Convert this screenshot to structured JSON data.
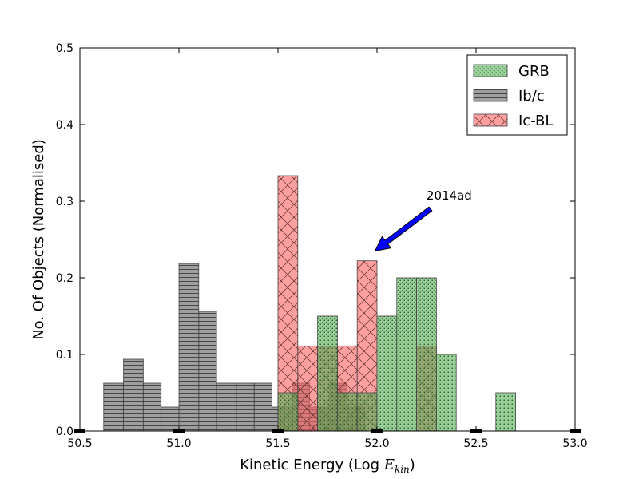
{
  "chart_data": {
    "type": "bar",
    "title": "",
    "xlabel": "Kinetic Energy (Log ",
    "xlabel_math": "E",
    "xlabel_sub": "kin",
    "xlabel_close": ")",
    "ylabel": "No. Of Objects (Normalised)",
    "xlim": [
      50.5,
      53.0
    ],
    "ylim": [
      0.0,
      0.5
    ],
    "xticks": [
      50.5,
      51.0,
      51.5,
      52.0,
      52.5,
      53.0
    ],
    "xtick_labels": [
      "50.5",
      "51.0",
      "51.5",
      "52.0",
      "52.5",
      "53.0"
    ],
    "yticks": [
      0.0,
      0.1,
      0.2,
      0.3,
      0.4,
      0.5
    ],
    "ytick_labels": [
      "0.0",
      "0.1",
      "0.2",
      "0.3",
      "0.4",
      "0.5"
    ],
    "grid": false,
    "legend_position": "top-right",
    "series": [
      {
        "name": "GRB",
        "color": "#5cb85c",
        "hatch": "dots",
        "bins": [
          {
            "x0": 51.5,
            "x1": 51.6,
            "value": 0.05
          },
          {
            "x0": 51.6,
            "x1": 51.7,
            "value": 0.0
          },
          {
            "x0": 51.7,
            "x1": 51.8,
            "value": 0.15
          },
          {
            "x0": 51.8,
            "x1": 51.9,
            "value": 0.05
          },
          {
            "x0": 51.9,
            "x1": 52.0,
            "value": 0.05
          },
          {
            "x0": 52.0,
            "x1": 52.1,
            "value": 0.15
          },
          {
            "x0": 52.1,
            "x1": 52.2,
            "value": 0.2
          },
          {
            "x0": 52.2,
            "x1": 52.3,
            "value": 0.2
          },
          {
            "x0": 52.3,
            "x1": 52.4,
            "value": 0.1
          },
          {
            "x0": 52.6,
            "x1": 52.7,
            "value": 0.05
          }
        ]
      },
      {
        "name": "Ib/c",
        "color": "#7f7f7f",
        "hatch": "horizontal",
        "bins": [
          {
            "x0": 50.62,
            "x1": 50.72,
            "value": 0.0625
          },
          {
            "x0": 50.72,
            "x1": 50.82,
            "value": 0.09375
          },
          {
            "x0": 50.82,
            "x1": 50.91,
            "value": 0.0625
          },
          {
            "x0": 50.91,
            "x1": 51.0,
            "value": 0.03125
          },
          {
            "x0": 51.0,
            "x1": 51.1,
            "value": 0.21875
          },
          {
            "x0": 51.1,
            "x1": 51.19,
            "value": 0.15625
          },
          {
            "x0": 51.19,
            "x1": 51.29,
            "value": 0.0625
          },
          {
            "x0": 51.29,
            "x1": 51.38,
            "value": 0.0625
          },
          {
            "x0": 51.38,
            "x1": 51.47,
            "value": 0.0625
          },
          {
            "x0": 51.47,
            "x1": 51.57,
            "value": 0.03125
          },
          {
            "x0": 51.57,
            "x1": 51.66,
            "value": 0.0625
          },
          {
            "x0": 51.66,
            "x1": 51.76,
            "value": 0.03125
          },
          {
            "x0": 51.76,
            "x1": 51.85,
            "value": 0.0625
          },
          {
            "x0": 51.85,
            "x1": 51.94,
            "value": 0.03125
          }
        ]
      },
      {
        "name": "Ic-BL",
        "color": "#ff6666",
        "hatch": "cross",
        "bins": [
          {
            "x0": 51.5,
            "x1": 51.6,
            "value": 0.3333
          },
          {
            "x0": 51.6,
            "x1": 51.7,
            "value": 0.1111
          },
          {
            "x0": 51.7,
            "x1": 51.8,
            "value": 0.1111
          },
          {
            "x0": 51.8,
            "x1": 51.9,
            "value": 0.1111
          },
          {
            "x0": 51.9,
            "x1": 52.0,
            "value": 0.2222
          },
          {
            "x0": 52.0,
            "x1": 52.1,
            "value": 0.0
          },
          {
            "x0": 52.2,
            "x1": 52.3,
            "value": 0.1111
          }
        ]
      }
    ],
    "annotations": [
      {
        "text": "2014ad",
        "text_x": 52.29,
        "text_y": 0.3,
        "arrow_from_x": 52.27,
        "arrow_from_y": 0.29,
        "arrow_to_x": 51.99,
        "arrow_to_y": 0.235,
        "arrow_color": "#0000ff"
      }
    ]
  }
}
